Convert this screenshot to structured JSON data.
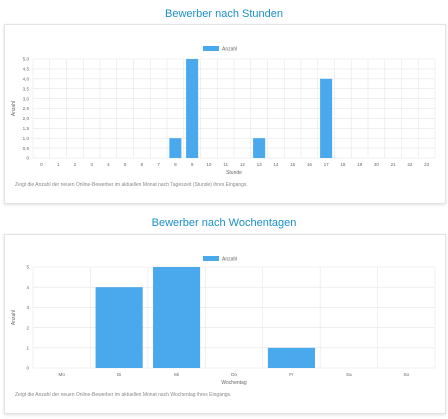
{
  "colors": {
    "bar": "#4aa8ec",
    "title": "#1a8fc9",
    "grid": "#e6e6e6",
    "axis_text": "#666666"
  },
  "sections": [
    {
      "title": "Bewerber nach Stunden",
      "note": "Zeigt die Anzahl der neuen Online-Bewerber im aktuellen Monat nach Tageszeit (Stunde) ihres Eingangs."
    },
    {
      "title": "Bewerber nach Wochentagen",
      "note": "Zeigt die Anzahl der neuen Online-Bewerber im aktuellen Monat nach Wochentag ihres Eingangs."
    }
  ],
  "chart_data": [
    {
      "type": "bar",
      "legend": "Anzahl",
      "legend_position": "top",
      "xlabel": "Stunde",
      "ylabel": "Anzahl",
      "ylim": [
        0,
        5
      ],
      "yticks": [
        "0",
        "0,5",
        "1,0",
        "1,5",
        "2,0",
        "2,5",
        "3,0",
        "3,5",
        "4,0",
        "4,5",
        "5,0"
      ],
      "grid": true,
      "categories": [
        "0",
        "1",
        "2",
        "3",
        "4",
        "5",
        "6",
        "7",
        "8",
        "9",
        "10",
        "11",
        "12",
        "13",
        "14",
        "15",
        "16",
        "17",
        "18",
        "19",
        "20",
        "21",
        "22",
        "23"
      ],
      "values": [
        0,
        0,
        0,
        0,
        0,
        0,
        0,
        0,
        1,
        5,
        0,
        0,
        0,
        1,
        0,
        0,
        0,
        4,
        0,
        0,
        0,
        0,
        0,
        0
      ]
    },
    {
      "type": "bar",
      "legend": "Anzahl",
      "legend_position": "top",
      "xlabel": "Wochentag",
      "ylabel": "Anzahl",
      "ylim": [
        0,
        5
      ],
      "yticks": [
        "0",
        "1",
        "2",
        "3",
        "4",
        "5"
      ],
      "grid": true,
      "categories": [
        "Mo",
        "Di",
        "Mi",
        "Do",
        "Fr",
        "Sa",
        "So"
      ],
      "values": [
        0,
        4,
        5,
        0,
        1,
        0,
        0
      ]
    }
  ]
}
